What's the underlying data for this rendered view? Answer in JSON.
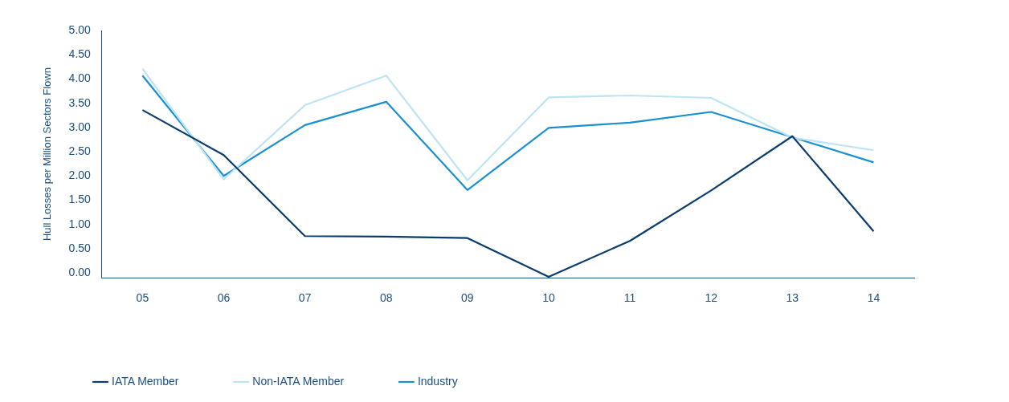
{
  "chart_data": {
    "type": "line",
    "ylabel": "Hull Losses per Million Sectors Flown",
    "categories": [
      "05",
      "06",
      "07",
      "08",
      "09",
      "10",
      "11",
      "12",
      "13",
      "14"
    ],
    "series": [
      {
        "name": "IATA Member",
        "color": "#0b3c6e",
        "values": [
          3.36,
          2.43,
          0.76,
          0.75,
          0.72,
          -0.08,
          0.66,
          1.7,
          2.82,
          0.86
        ]
      },
      {
        "name": "Non-IATA Member",
        "color": "#bde3f5",
        "values": [
          4.21,
          1.93,
          3.46,
          4.07,
          1.91,
          3.62,
          3.66,
          3.61,
          2.79,
          2.53
        ]
      },
      {
        "name": "Industry",
        "color": "#1a90d0",
        "values": [
          4.07,
          2.0,
          3.05,
          3.53,
          1.71,
          2.99,
          3.1,
          3.32,
          2.8,
          2.28
        ]
      }
    ],
    "ylim": [
      -0.1,
      5
    ],
    "yticks": [
      {
        "value": 0,
        "label": "0.00"
      },
      {
        "value": 0.5,
        "label": "0.50"
      },
      {
        "value": 1,
        "label": "1.00"
      },
      {
        "value": 1.5,
        "label": "1.50"
      },
      {
        "value": 2,
        "label": "2.00"
      },
      {
        "value": 2.5,
        "label": "2.50"
      },
      {
        "value": 3,
        "label": "3.00"
      },
      {
        "value": 3.5,
        "label": "3.50"
      },
      {
        "value": 4,
        "label": "4.00"
      },
      {
        "value": 4.5,
        "label": "4.50"
      },
      {
        "value": 5,
        "label": "5.00"
      }
    ],
    "grid": false,
    "legend": "bottom left",
    "marker": "none",
    "line_style": "solid"
  }
}
